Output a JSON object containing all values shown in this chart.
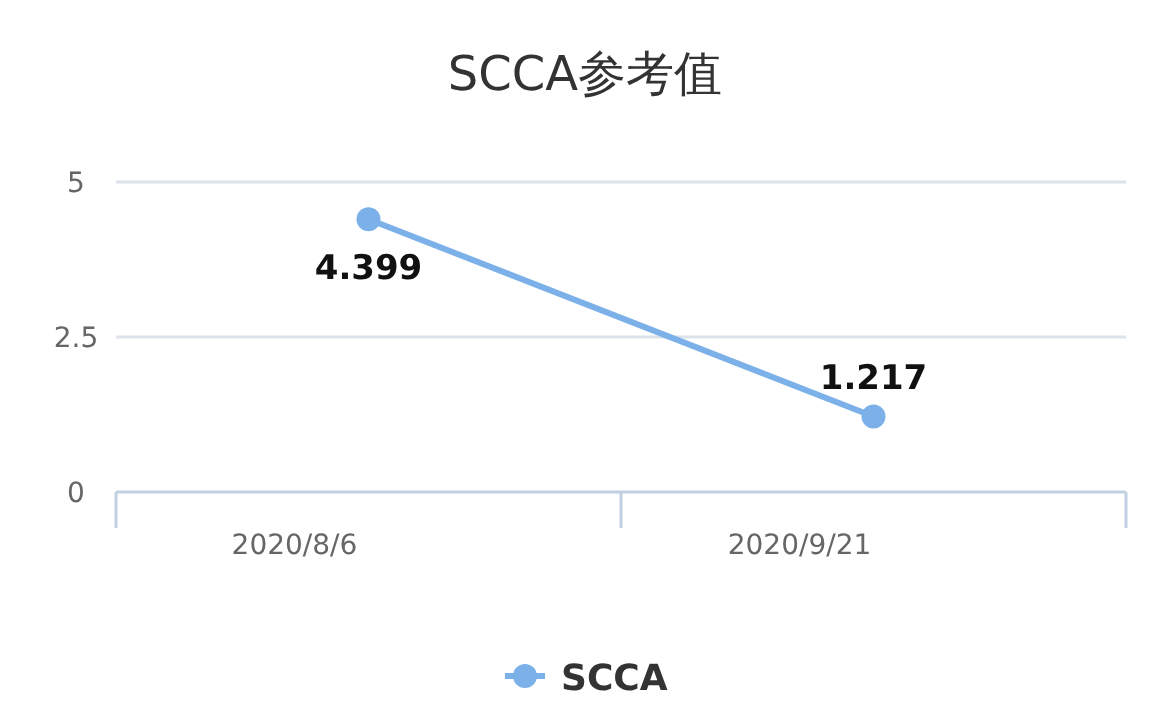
{
  "chart_data": {
    "type": "line",
    "title": "SCCA参考值",
    "categories": [
      "2020/8/6",
      "2020/9/21"
    ],
    "series": [
      {
        "name": "SCCA",
        "color": "#7cb0e8",
        "values": [
          4.399,
          1.217
        ]
      }
    ],
    "ylim": [
      0,
      5
    ],
    "yticks": [
      0,
      2.5,
      5
    ],
    "grid": "y",
    "legend": "bottom",
    "marker": "circle",
    "data_labels": true
  }
}
